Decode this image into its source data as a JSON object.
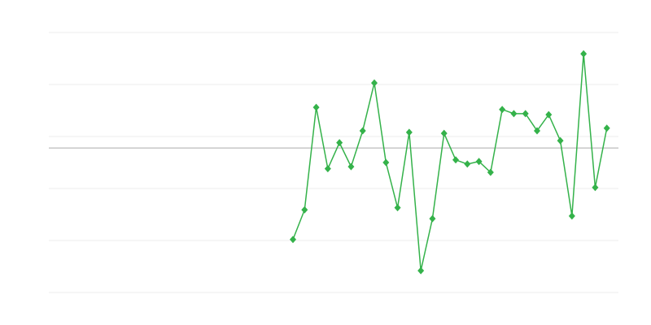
{
  "chart_data": {
    "type": "line",
    "title": "",
    "xlabel": "",
    "ylabel": "",
    "xlim": [
      0,
      49
    ],
    "ylim": [
      0,
      5
    ],
    "grid": true,
    "gridlines_y": [
      0,
      1,
      2,
      3,
      4,
      5
    ],
    "baseline_y": 2.78,
    "legend": "none",
    "colors": {
      "series": "#34b24a",
      "grid": "#ececec",
      "baseline": "#aaaaaa"
    },
    "marker": "diamond",
    "series": [
      {
        "x": [
          21,
          22,
          23,
          24,
          25,
          26,
          27,
          28,
          29,
          30,
          31,
          32,
          33,
          34,
          35,
          36,
          37,
          38,
          39,
          40,
          41,
          42,
          43,
          44,
          45,
          46,
          47,
          48
        ],
        "values": [
          1.02,
          1.59,
          3.56,
          2.38,
          2.88,
          2.42,
          3.11,
          4.03,
          2.5,
          1.63,
          3.08,
          0.42,
          1.42,
          3.06,
          2.55,
          2.47,
          2.52,
          2.31,
          3.52,
          3.44,
          3.44,
          3.11,
          3.42,
          2.92,
          1.47,
          4.59,
          2.02,
          3.16
        ]
      }
    ]
  }
}
